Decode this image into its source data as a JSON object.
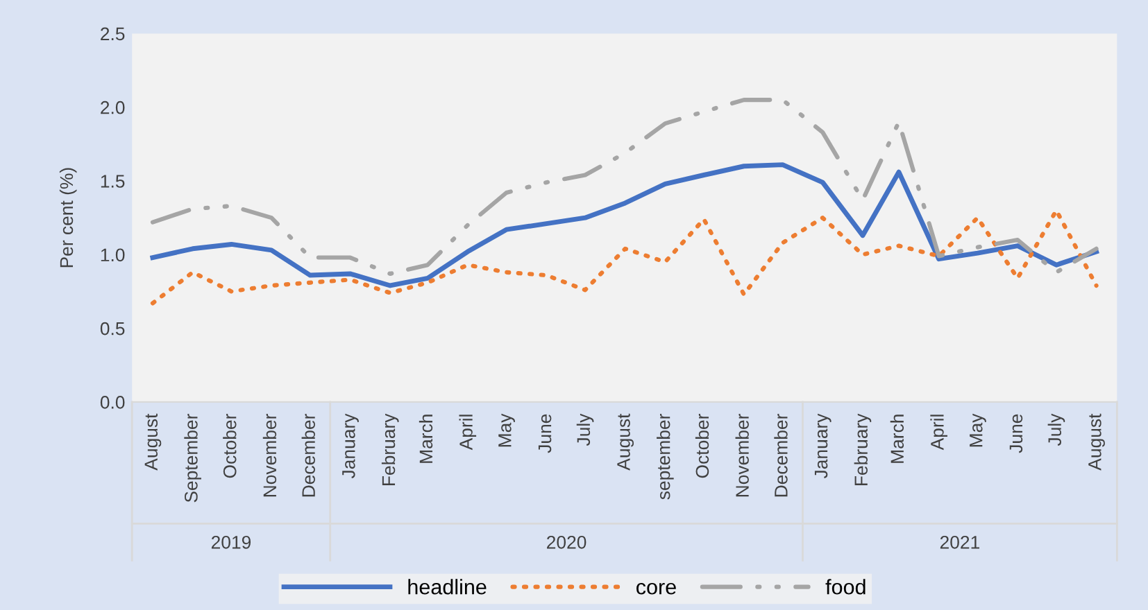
{
  "chart_data": {
    "type": "line",
    "ylabel": "Per cent (%)",
    "x": [
      "2019-08",
      "2019-09",
      "2019-10",
      "2019-11",
      "2019-12",
      "2020-01",
      "2020-02",
      "2020-03",
      "2020-04",
      "2020-05",
      "2020-06",
      "2020-07",
      "2020-08",
      "2020-09",
      "2020-10",
      "2020-11",
      "2020-12",
      "2021-01",
      "2021-02",
      "2021-03",
      "2021-04",
      "2021-05",
      "2021-06",
      "2021-07",
      "2021-08"
    ],
    "xlim": [
      "2019-07-16",
      "2021-08-17"
    ],
    "xticks": [
      {
        "value": "2019-08",
        "label": "August"
      },
      {
        "value": "2019-09",
        "label": "September"
      },
      {
        "value": "2019-10",
        "label": "October"
      },
      {
        "value": "2019-11",
        "label": "November"
      },
      {
        "value": "2019-12",
        "label": "December"
      },
      {
        "value": "2020-01",
        "label": "January"
      },
      {
        "value": "2020-02",
        "label": "February"
      },
      {
        "value": "2020-03",
        "label": "March"
      },
      {
        "value": "2020-04",
        "label": "April"
      },
      {
        "value": "2020-05",
        "label": "May"
      },
      {
        "value": "2020-06",
        "label": "June"
      },
      {
        "value": "2020-07",
        "label": "July"
      },
      {
        "value": "2020-08",
        "label": "August"
      },
      {
        "value": "2020-09",
        "label": "september"
      },
      {
        "value": "2020-10",
        "label": "October"
      },
      {
        "value": "2020-11",
        "label": "November"
      },
      {
        "value": "2020-12",
        "label": "December"
      },
      {
        "value": "2021-01",
        "label": "January"
      },
      {
        "value": "2021-02",
        "label": "February"
      },
      {
        "value": "2021-03",
        "label": "March"
      },
      {
        "value": "2021-04",
        "label": "April"
      },
      {
        "value": "2021-05",
        "label": "May"
      },
      {
        "value": "2021-06",
        "label": "June"
      },
      {
        "value": "2021-07",
        "label": "July"
      },
      {
        "value": "2021-08",
        "label": "August"
      }
    ],
    "ylim": [
      0,
      2.5
    ],
    "yticks": [
      {
        "value": 0,
        "label": "0.0"
      },
      {
        "value": 0.5,
        "label": "0.5"
      },
      {
        "value": 1,
        "label": "1.0"
      },
      {
        "value": 1.5,
        "label": "1.5"
      },
      {
        "value": 2,
        "label": "2.0"
      },
      {
        "value": 2.5,
        "label": "2.5"
      }
    ],
    "series": [
      {
        "name": "headline",
        "color": "#4472c4",
        "line_style": "solid",
        "values": [
          0.98,
          1.04,
          1.07,
          1.03,
          0.86,
          0.87,
          0.79,
          0.84,
          1.02,
          1.17,
          1.21,
          1.25,
          1.35,
          1.48,
          1.54,
          1.6,
          1.61,
          1.49,
          1.13,
          1.56,
          0.97,
          1.01,
          1.06,
          0.93,
          1.02
        ]
      },
      {
        "name": "core",
        "color": "#ed7d31",
        "line_style": "dotted",
        "values": [
          0.67,
          0.88,
          0.75,
          0.79,
          0.81,
          0.83,
          0.74,
          0.81,
          0.93,
          0.88,
          0.86,
          0.76,
          1.04,
          0.95,
          1.24,
          0.73,
          1.08,
          1.25,
          1.0,
          1.06,
          0.99,
          1.25,
          0.84,
          1.3,
          0.79
        ]
      },
      {
        "name": "food",
        "color": "#a5a5a5",
        "line_style": "dashdot",
        "values": [
          1.22,
          1.31,
          1.33,
          1.25,
          0.98,
          0.98,
          0.87,
          0.93,
          1.2,
          1.42,
          1.49,
          1.54,
          1.69,
          1.89,
          1.97,
          2.05,
          2.05,
          1.83,
          1.37,
          1.9,
          0.99,
          1.05,
          1.1,
          0.88,
          1.04
        ]
      }
    ],
    "annotations": [
      "2019",
      "2020",
      "2021"
    ],
    "grid": false,
    "legend": "bottom",
    "marker": "none"
  }
}
